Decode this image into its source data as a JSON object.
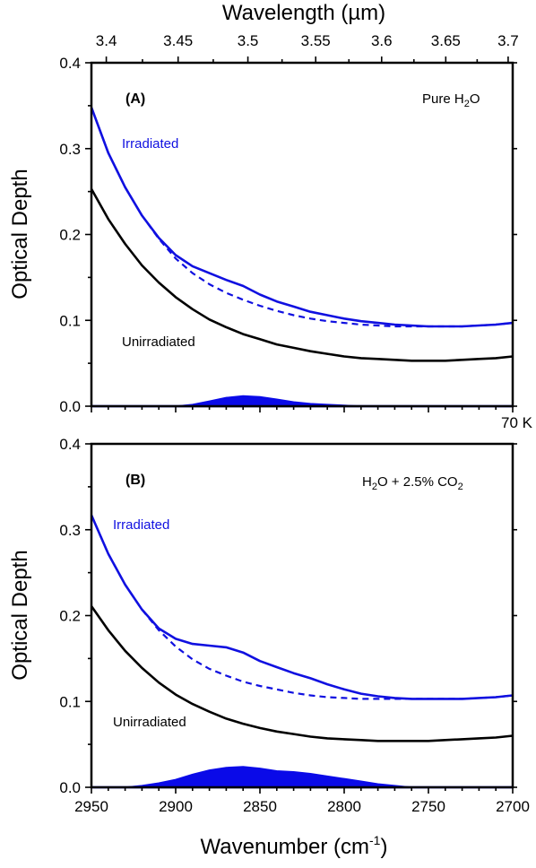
{
  "figure": {
    "top_axis_title": "Wavelength (µm)",
    "x_axis_title_main": "Wavenumber (cm",
    "x_axis_title_sup": "-1",
    "x_axis_title_end": ")",
    "temperature_label": "70 K"
  },
  "colors": {
    "irradiated": "#1010e0",
    "unirradiated": "#000000",
    "difference_fill": "#0a0ae8"
  },
  "chart_data": [
    {
      "type": "line",
      "panel_label": "(A)",
      "condition_prefix": "Pure H",
      "condition_sub": "2",
      "condition_suffix": "O",
      "ylabel": "Optical Depth",
      "xlabel": "Wavenumber (cm-1)",
      "top_xlabel": "Wavelength (µm)",
      "xlim": [
        2950,
        2700
      ],
      "ylim": [
        0,
        0.4
      ],
      "yticks": [
        "0.0",
        "0.1",
        "0.2",
        "0.3",
        "0.4"
      ],
      "top_ticks": [
        "3.4",
        "3.45",
        "3.5",
        "3.55",
        "3.6",
        "3.65",
        "3.7"
      ],
      "grid": false,
      "annotations": {
        "irradiated": "Irradiated",
        "unirradiated": "Unirradiated"
      },
      "series": [
        {
          "name": "Irradiated",
          "style": "solid",
          "x": [
            2950,
            2940,
            2930,
            2920,
            2910,
            2900,
            2890,
            2880,
            2870,
            2860,
            2850,
            2840,
            2830,
            2820,
            2810,
            2800,
            2790,
            2780,
            2770,
            2760,
            2750,
            2740,
            2730,
            2720,
            2710,
            2700
          ],
          "y": [
            0.348,
            0.295,
            0.255,
            0.222,
            0.196,
            0.176,
            0.163,
            0.155,
            0.147,
            0.14,
            0.13,
            0.122,
            0.116,
            0.11,
            0.106,
            0.102,
            0.099,
            0.097,
            0.095,
            0.094,
            0.093,
            0.093,
            0.093,
            0.094,
            0.095,
            0.097
          ]
        },
        {
          "name": "Baseline",
          "style": "dashed",
          "x": [
            2950,
            2940,
            2930,
            2920,
            2910,
            2900,
            2890,
            2880,
            2870,
            2860,
            2850,
            2840,
            2830,
            2820,
            2810,
            2800,
            2790,
            2780,
            2770,
            2760,
            2750,
            2740,
            2730,
            2720,
            2710,
            2700
          ],
          "y": [
            0.348,
            0.295,
            0.255,
            0.222,
            0.195,
            0.172,
            0.155,
            0.142,
            0.132,
            0.124,
            0.117,
            0.111,
            0.106,
            0.102,
            0.099,
            0.097,
            0.095,
            0.094,
            0.093,
            0.093,
            0.093,
            0.093,
            0.093,
            0.094,
            0.095,
            0.097
          ]
        },
        {
          "name": "Unirradiated",
          "style": "solid",
          "x": [
            2950,
            2940,
            2930,
            2920,
            2910,
            2900,
            2890,
            2880,
            2870,
            2860,
            2850,
            2840,
            2830,
            2820,
            2810,
            2800,
            2790,
            2780,
            2770,
            2760,
            2750,
            2740,
            2730,
            2720,
            2710,
            2700
          ],
          "y": [
            0.253,
            0.218,
            0.189,
            0.164,
            0.144,
            0.127,
            0.113,
            0.101,
            0.092,
            0.084,
            0.078,
            0.072,
            0.068,
            0.064,
            0.061,
            0.058,
            0.056,
            0.055,
            0.054,
            0.053,
            0.053,
            0.053,
            0.054,
            0.055,
            0.056,
            0.058
          ]
        },
        {
          "name": "Difference",
          "style": "fill",
          "x": [
            2950,
            2900,
            2890,
            2880,
            2870,
            2860,
            2850,
            2840,
            2830,
            2820,
            2810,
            2800,
            2790,
            2700
          ],
          "y": [
            0.0,
            0.0,
            0.002,
            0.006,
            0.01,
            0.012,
            0.011,
            0.008,
            0.005,
            0.003,
            0.002,
            0.001,
            0.0,
            0.0
          ]
        }
      ]
    },
    {
      "type": "line",
      "panel_label": "(B)",
      "condition_prefix": "H",
      "condition_sub": "2",
      "condition_suffix": "O + 2.5% CO",
      "condition_sub2": "2",
      "ylabel": "Optical Depth",
      "xlabel": "Wavenumber (cm-1)",
      "xlim": [
        2950,
        2700
      ],
      "ylim": [
        0,
        0.4
      ],
      "yticks": [
        "0.0",
        "0.1",
        "0.2",
        "0.3",
        "0.4"
      ],
      "xticks": [
        "2950",
        "2900",
        "2850",
        "2800",
        "2750",
        "2700"
      ],
      "grid": false,
      "annotations": {
        "irradiated": "Irradiated",
        "unirradiated": "Unirradiated"
      },
      "series": [
        {
          "name": "Irradiated",
          "style": "solid",
          "x": [
            2950,
            2940,
            2930,
            2920,
            2910,
            2900,
            2890,
            2880,
            2870,
            2860,
            2850,
            2840,
            2830,
            2820,
            2810,
            2800,
            2790,
            2780,
            2770,
            2760,
            2750,
            2740,
            2730,
            2720,
            2710,
            2700
          ],
          "y": [
            0.317,
            0.272,
            0.236,
            0.207,
            0.185,
            0.173,
            0.167,
            0.165,
            0.163,
            0.157,
            0.147,
            0.14,
            0.133,
            0.127,
            0.12,
            0.114,
            0.109,
            0.106,
            0.104,
            0.103,
            0.103,
            0.103,
            0.103,
            0.104,
            0.105,
            0.107
          ]
        },
        {
          "name": "Baseline",
          "style": "dashed",
          "x": [
            2950,
            2940,
            2930,
            2920,
            2910,
            2900,
            2890,
            2880,
            2870,
            2860,
            2850,
            2840,
            2830,
            2820,
            2810,
            2800,
            2790,
            2780,
            2770,
            2760,
            2750,
            2740,
            2730,
            2720,
            2710,
            2700
          ],
          "y": [
            0.317,
            0.272,
            0.236,
            0.207,
            0.183,
            0.164,
            0.149,
            0.138,
            0.13,
            0.123,
            0.118,
            0.114,
            0.11,
            0.107,
            0.105,
            0.104,
            0.103,
            0.103,
            0.103,
            0.103,
            0.103,
            0.103,
            0.103,
            0.104,
            0.105,
            0.107
          ]
        },
        {
          "name": "Unirradiated",
          "style": "solid",
          "x": [
            2950,
            2940,
            2930,
            2920,
            2910,
            2900,
            2890,
            2880,
            2870,
            2860,
            2850,
            2840,
            2830,
            2820,
            2810,
            2800,
            2790,
            2780,
            2770,
            2760,
            2750,
            2740,
            2730,
            2720,
            2710,
            2700
          ],
          "y": [
            0.211,
            0.183,
            0.159,
            0.139,
            0.122,
            0.108,
            0.097,
            0.088,
            0.08,
            0.074,
            0.069,
            0.065,
            0.062,
            0.059,
            0.057,
            0.056,
            0.055,
            0.054,
            0.054,
            0.054,
            0.054,
            0.055,
            0.056,
            0.057,
            0.058,
            0.06
          ]
        },
        {
          "name": "Difference",
          "style": "fill",
          "x": [
            2950,
            2930,
            2920,
            2910,
            2900,
            2890,
            2880,
            2870,
            2860,
            2850,
            2840,
            2830,
            2820,
            2810,
            2800,
            2790,
            2780,
            2770,
            2760,
            2700
          ],
          "y": [
            0.0,
            0.0,
            0.002,
            0.005,
            0.009,
            0.015,
            0.02,
            0.023,
            0.024,
            0.022,
            0.019,
            0.018,
            0.016,
            0.013,
            0.01,
            0.007,
            0.004,
            0.002,
            0.0,
            0.0
          ]
        }
      ]
    }
  ]
}
